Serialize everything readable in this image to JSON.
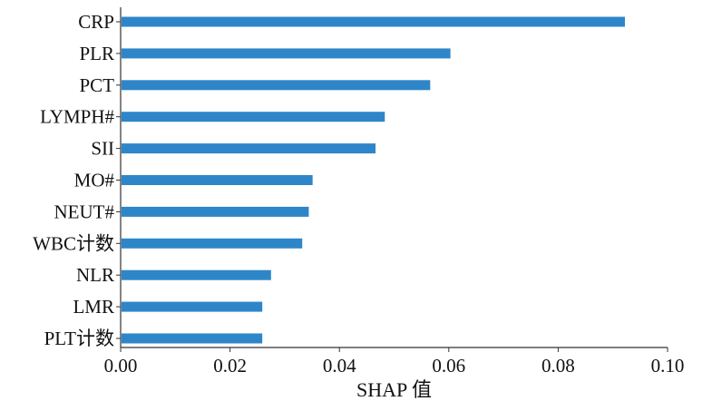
{
  "chart_data": {
    "type": "bar",
    "orientation": "horizontal",
    "categories": [
      "CRP",
      "PLR",
      "PCT",
      "LYMPH#",
      "SII",
      "MO#",
      "NEUT#",
      "WBC计数",
      "NLR",
      "LMR",
      "PLT计数"
    ],
    "values": [
      0.0922,
      0.0603,
      0.0566,
      0.0483,
      0.0466,
      0.0351,
      0.0344,
      0.0332,
      0.0275,
      0.0259,
      0.0259
    ],
    "xlabel": "SHAP 值",
    "ylabel": "",
    "title": "",
    "xlim": [
      0.0,
      0.1
    ],
    "xticks": [
      "0.00",
      "0.02",
      "0.04",
      "0.06",
      "0.08",
      "0.10"
    ],
    "bar_color": "#2e86c9",
    "axis_color": "#333333",
    "grid": false,
    "legend": "none"
  }
}
